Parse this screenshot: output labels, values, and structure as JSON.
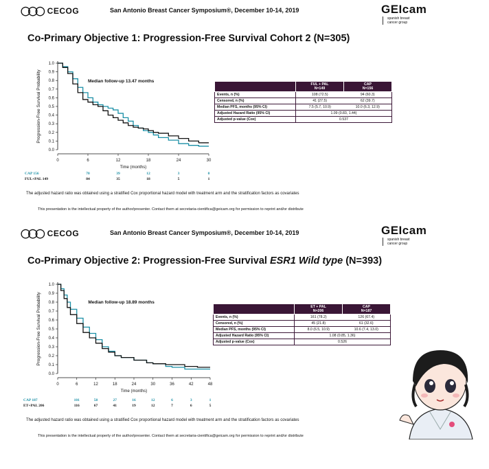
{
  "header": {
    "cecog_label": "CECOG",
    "conference": "San Antonio Breast Cancer Symposium®, December 10-14, 2019",
    "geicam_word": "GEIcam",
    "geicam_sub_1": "spanish breast",
    "geicam_sub_2": "cancer group"
  },
  "slides": [
    {
      "title": "Co-Primary Objective 1: Progression-Free Survival Cohort 2 (N=305)",
      "followup": "Median follow-up  13.47 months",
      "ylabel": "Progression-Free Survival Probability",
      "xlabel": "Time (months)",
      "table": {
        "headers": [
          [
            "FUL + PAL",
            "N=149"
          ],
          [
            "CAP",
            "N=156"
          ]
        ],
        "rows": [
          {
            "label": "Events, n (%)",
            "a": "108 (72.5)",
            "b": "94 (60.3)"
          },
          {
            "label": "Censored, n (%)",
            "a": "41 (27.5)",
            "b": "62 (39.7)"
          },
          {
            "label": "Median PFS, months (95% CI)",
            "a": "7.5 (5.7, 10.9)",
            "b": "10.0 (6.3, 12.9)"
          },
          {
            "label": "Adjusted Hazard Ratio (95% CI)",
            "merged": "1.09 (0.83, 1.44)"
          },
          {
            "label": "Adjusted p-value (Cox)",
            "merged": "0.537"
          }
        ]
      },
      "note": "The adjusted hazard ratio was obtained using a stratified Cox proportional hazard model with treatment arm and the stratification factors as covariates",
      "ip": "This presentation is the intellectual property of the author/presenter. Contact them at secretaria-cientifica@geicam.org for permission to reprint and/or distribute"
    },
    {
      "title_pre": "Co-Primary Objective 2: Progression-Free Survival ",
      "title_em": "ESR1 Wild type",
      "title_post": " (N=393)",
      "followup": "Median follow-up 18.89 months",
      "ylabel": "Progression-Free Survival Probability",
      "xlabel": "Time (months)",
      "table": {
        "headers": [
          [
            "ET + PAL",
            "N=206"
          ],
          [
            "CAP",
            "N=187"
          ]
        ],
        "rows": [
          {
            "label": "Events, n (%)",
            "a": "161 (78.2)",
            "b": "126 (67.4)"
          },
          {
            "label": "Censored, n (%)",
            "a": "45 (21.8)",
            "b": "61 (32.6)"
          },
          {
            "label": "Median PFS, months (95% CI)",
            "a": "8.0 (6.5, 10.9)",
            "b": "10.6 (7.4, 13.0)"
          },
          {
            "label": "Adjusted Hazard Ratio (95% CI)",
            "merged": "1.08 (0.85, 1.36)"
          },
          {
            "label": "Adjusted p-value (Cox)",
            "merged": "0.526"
          }
        ]
      },
      "note": "The adjusted hazard ratio was obtained using a stratified Cox proportional hazard model with treatment arm and the stratification factors as covariates",
      "ip": "This presentation is the intellectual property of the author/presenter. Contact them at secretaria-cientifica@geicam.org for permission to reprint and/or distribute"
    }
  ],
  "chart_data": [
    {
      "type": "line",
      "title": "Co-Primary Objective 1: Progression-Free Survival Cohort 2 (N=305)",
      "xlabel": "Time (months)",
      "ylabel": "Progression-Free Survival Probability",
      "xlim": [
        0,
        30
      ],
      "ylim": [
        0,
        1
      ],
      "xticks": [
        "0",
        "6",
        "12",
        "18",
        "24",
        "30"
      ],
      "yticks": [
        "0.0",
        "0.1",
        "0.2",
        "0.3",
        "0.4",
        "0.5",
        "0.6",
        "0.7",
        "0.8",
        "0.9",
        "1.0"
      ],
      "series": [
        {
          "name": "CAP",
          "color": "#1a8fa6",
          "x": [
            0,
            1,
            2,
            3,
            4,
            5,
            6,
            7,
            8,
            9,
            10,
            11,
            12,
            13,
            14,
            15,
            16,
            17,
            18,
            19,
            20,
            22,
            24,
            26,
            28,
            30
          ],
          "y": [
            1.0,
            0.96,
            0.9,
            0.82,
            0.72,
            0.66,
            0.6,
            0.55,
            0.52,
            0.5,
            0.48,
            0.46,
            0.42,
            0.37,
            0.33,
            0.28,
            0.25,
            0.22,
            0.2,
            0.17,
            0.14,
            0.11,
            0.07,
            0.05,
            0.04,
            0.04
          ]
        },
        {
          "name": "FUL+PAL",
          "color": "#111111",
          "x": [
            0,
            1,
            2,
            3,
            4,
            5,
            6,
            7,
            8,
            9,
            10,
            11,
            12,
            13,
            14,
            15,
            16,
            17,
            18,
            19,
            20,
            22,
            24,
            26,
            28,
            30
          ],
          "y": [
            1.0,
            0.95,
            0.88,
            0.76,
            0.66,
            0.58,
            0.55,
            0.52,
            0.5,
            0.45,
            0.4,
            0.37,
            0.34,
            0.31,
            0.28,
            0.26,
            0.25,
            0.24,
            0.22,
            0.2,
            0.19,
            0.16,
            0.13,
            0.1,
            0.08,
            0.08
          ]
        }
      ],
      "risk_table": {
        "times": [
          0,
          6,
          12,
          18,
          24,
          30
        ],
        "rows": [
          {
            "label": "CAP 156",
            "color": "#1a8fa6",
            "values": [
              "70",
              "39",
              "12",
              "3",
              "0"
            ]
          },
          {
            "label": "FUL+PAL 149",
            "color": "#111111",
            "values": [
              "84",
              "35",
              "18",
              "5",
              "1"
            ]
          }
        ]
      }
    },
    {
      "type": "line",
      "title": "Co-Primary Objective 2: Progression-Free Survival ESR1 Wild type (N=393)",
      "xlabel": "Time (months)",
      "ylabel": "Progression-Free Survival Probability",
      "xlim": [
        0,
        48
      ],
      "ylim": [
        0,
        1
      ],
      "xticks": [
        "0",
        "6",
        "12",
        "18",
        "24",
        "30",
        "36",
        "42",
        "48"
      ],
      "yticks": [
        "0.0",
        "0.1",
        "0.2",
        "0.3",
        "0.4",
        "0.5",
        "0.6",
        "0.7",
        "0.8",
        "0.9",
        "1.0"
      ],
      "series": [
        {
          "name": "CAP",
          "color": "#1a8fa6",
          "x": [
            0,
            1,
            2,
            3,
            4,
            6,
            8,
            10,
            12,
            14,
            16,
            18,
            20,
            24,
            28,
            30,
            34,
            36,
            40,
            44,
            48
          ],
          "y": [
            1.0,
            0.95,
            0.88,
            0.8,
            0.72,
            0.62,
            0.52,
            0.45,
            0.38,
            0.3,
            0.25,
            0.2,
            0.18,
            0.15,
            0.12,
            0.11,
            0.08,
            0.07,
            0.05,
            0.05,
            0.05
          ]
        },
        {
          "name": "ET+PAL",
          "color": "#111111",
          "x": [
            0,
            1,
            2,
            3,
            4,
            6,
            8,
            10,
            12,
            14,
            16,
            18,
            20,
            24,
            28,
            30,
            34,
            36,
            40,
            44,
            48
          ],
          "y": [
            1.0,
            0.93,
            0.84,
            0.74,
            0.66,
            0.56,
            0.46,
            0.4,
            0.34,
            0.28,
            0.24,
            0.2,
            0.18,
            0.15,
            0.12,
            0.11,
            0.1,
            0.1,
            0.08,
            0.07,
            0.07
          ]
        }
      ],
      "risk_table": {
        "times": [
          0,
          6,
          12,
          18,
          24,
          30,
          36,
          42,
          48
        ],
        "rows": [
          {
            "label": "CAP 187",
            "color": "#1a8fa6",
            "values": [
              "101",
              "58",
              "27",
              "16",
              "12",
              "6",
              "3",
              "1"
            ]
          },
          {
            "label": "ET+PAL 206",
            "color": "#111111",
            "values": [
              "116",
              "67",
              "41",
              "19",
              "12",
              "7",
              "6",
              "5"
            ]
          }
        ]
      }
    }
  ]
}
